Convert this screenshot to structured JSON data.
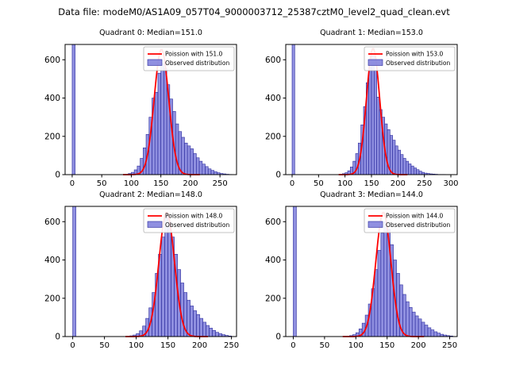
{
  "figure": {
    "title": "Data file: modeM0/AS1A09_057T04_9000003712_25387cztM0_level2_quad_clean.evt"
  },
  "colors": {
    "bar_fill": "#7b7bdb",
    "bar_edge": "#2a2a9c",
    "fit_line": "#ff0000",
    "legend_border": "#b0b0b0",
    "legend_bg": "#ffffff",
    "spine": "#000000"
  },
  "chart_data": [
    {
      "type": "bar",
      "subtype": "histogram-with-fit",
      "title": "Quadrant 0: Median=151.0",
      "median": 151.0,
      "legend": [
        "Poission with 151.0",
        "Observed distribution"
      ],
      "bin_start": 0,
      "bin_width": 5,
      "counts": [
        700,
        0,
        0,
        0,
        0,
        0,
        0,
        0,
        0,
        0,
        0,
        0,
        0,
        0,
        0,
        0,
        0,
        0,
        0,
        6,
        12,
        25,
        45,
        85,
        140,
        210,
        300,
        400,
        430,
        530,
        580,
        555,
        470,
        395,
        330,
        265,
        225,
        195,
        165,
        150,
        135,
        110,
        88,
        70,
        55,
        42,
        30,
        22,
        15,
        10,
        6,
        4,
        2,
        1
      ],
      "fit": {
        "label": "Poission with 151.0",
        "mean": 151.0,
        "sigma": 12.3,
        "peak": 655
      },
      "xlim": [
        -12,
        278
      ],
      "xticks": [
        0,
        50,
        100,
        150,
        200,
        250
      ],
      "ylim": [
        0,
        680
      ],
      "yticks": [
        0,
        200,
        400,
        600
      ]
    },
    {
      "type": "bar",
      "subtype": "histogram-with-fit",
      "title": "Quadrant 1: Median=153.0",
      "median": 153.0,
      "legend": [
        "Poission with 153.0",
        "Observed distribution"
      ],
      "bin_start": 0,
      "bin_width": 5,
      "counts": [
        700,
        0,
        0,
        0,
        0,
        0,
        0,
        0,
        0,
        0,
        0,
        0,
        0,
        0,
        0,
        0,
        0,
        0,
        0,
        5,
        10,
        20,
        40,
        70,
        110,
        165,
        260,
        355,
        480,
        560,
        620,
        545,
        405,
        340,
        300,
        265,
        235,
        205,
        180,
        150,
        128,
        105,
        85,
        70,
        56,
        45,
        35,
        26,
        18,
        12,
        8,
        6,
        4,
        3,
        2,
        1,
        1,
        1
      ],
      "fit": {
        "label": "Poission with 153.0",
        "mean": 153.0,
        "sigma": 12.4,
        "peak": 660
      },
      "xlim": [
        -12,
        312
      ],
      "xticks": [
        0,
        50,
        100,
        150,
        200,
        250,
        300
      ],
      "ylim": [
        0,
        680
      ],
      "yticks": [
        0,
        200,
        400,
        600
      ]
    },
    {
      "type": "bar",
      "subtype": "histogram-with-fit",
      "title": "Quadrant 2: Median=148.0",
      "median": 148.0,
      "legend": [
        "Poission with 148.0",
        "Observed distribution"
      ],
      "bin_start": 0,
      "bin_width": 5,
      "counts": [
        700,
        0,
        0,
        0,
        0,
        0,
        0,
        0,
        0,
        0,
        0,
        0,
        0,
        0,
        0,
        0,
        0,
        0,
        4,
        8,
        15,
        30,
        55,
        95,
        150,
        230,
        330,
        430,
        520,
        640,
        600,
        520,
        430,
        350,
        280,
        230,
        190,
        160,
        135,
        115,
        95,
        75,
        58,
        44,
        32,
        22,
        15,
        10,
        6,
        3
      ],
      "fit": {
        "label": "Poission with 148.0",
        "mean": 148.0,
        "sigma": 12.2,
        "peak": 650
      },
      "xlim": [
        -12,
        258
      ],
      "xticks": [
        0,
        50,
        100,
        150,
        200,
        250
      ],
      "ylim": [
        0,
        680
      ],
      "yticks": [
        0,
        200,
        400,
        600
      ]
    },
    {
      "type": "bar",
      "subtype": "histogram-with-fit",
      "title": "Quadrant 3: Median=144.0",
      "median": 144.0,
      "legend": [
        "Poission with 144.0",
        "Observed distribution"
      ],
      "bin_start": 0,
      "bin_width": 5,
      "counts": [
        700,
        0,
        0,
        0,
        0,
        0,
        0,
        0,
        0,
        0,
        0,
        0,
        0,
        0,
        0,
        0,
        0,
        0,
        5,
        10,
        20,
        40,
        70,
        112,
        170,
        250,
        350,
        450,
        540,
        600,
        560,
        480,
        400,
        330,
        270,
        220,
        182,
        152,
        128,
        108,
        92,
        75,
        60,
        46,
        35,
        25,
        18,
        12,
        8,
        5,
        3
      ],
      "fit": {
        "label": "Poission with 144.0",
        "mean": 144.0,
        "sigma": 12.0,
        "peak": 650
      },
      "xlim": [
        -12,
        262
      ],
      "xticks": [
        0,
        50,
        100,
        150,
        200,
        250
      ],
      "ylim": [
        0,
        680
      ],
      "yticks": [
        0,
        200,
        400,
        600
      ]
    }
  ]
}
